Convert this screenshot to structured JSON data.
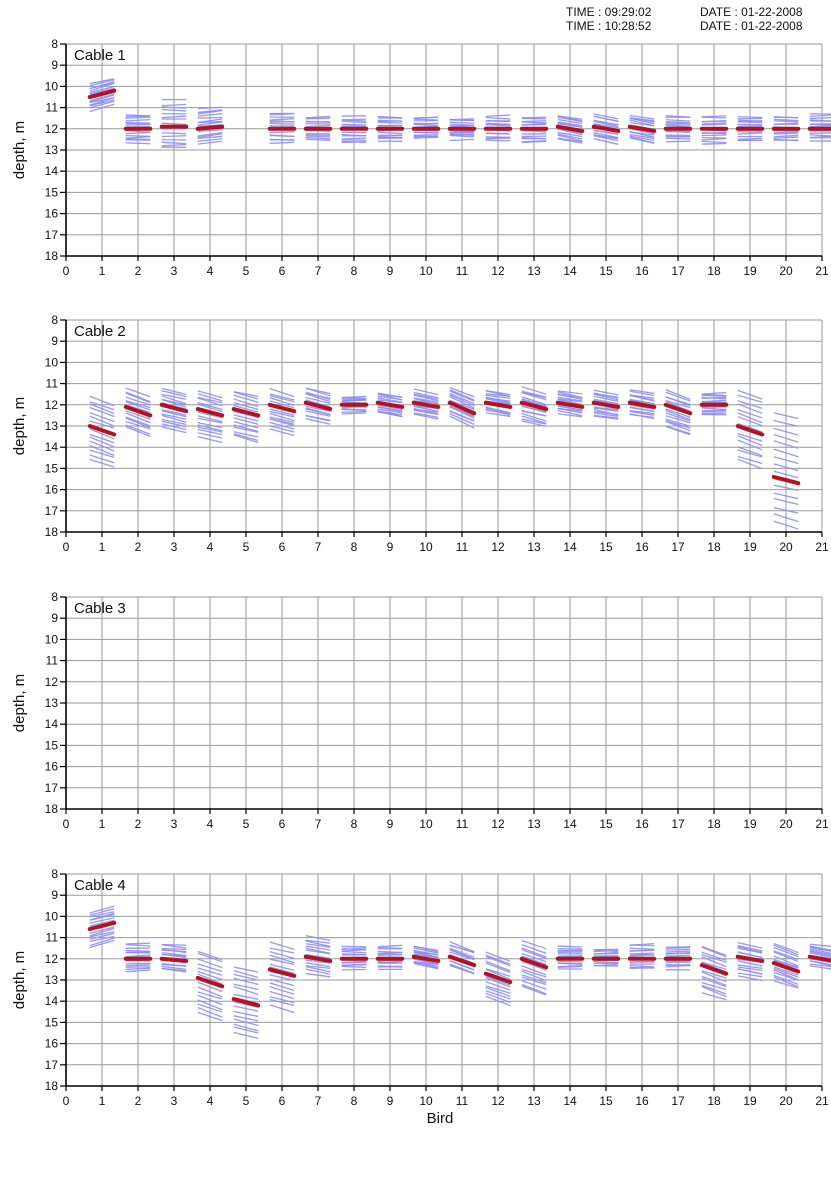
{
  "header": {
    "lines": [
      {
        "time": "TIME : 09:29:02",
        "date": "DATE : 01-22-2008"
      },
      {
        "time": "TIME : 10:28:52",
        "date": "DATE : 01-22-2008"
      }
    ]
  },
  "colors": {
    "mean_line": "#b5121b",
    "spread_lines": "#8d8df0",
    "grid": "#9a9a9a"
  },
  "chart_data": [
    {
      "type": "line",
      "title": "Cable 1",
      "xlabel": "",
      "ylabel": "depth, m",
      "xlim": [
        0,
        21
      ],
      "ylim": [
        8,
        18
      ],
      "y_inverted": true,
      "grid": true,
      "xticks": [
        0,
        1,
        2,
        3,
        4,
        5,
        6,
        7,
        8,
        9,
        10,
        11,
        12,
        13,
        14,
        15,
        16,
        17,
        18,
        19,
        20,
        21
      ],
      "yticks": [
        8,
        9,
        10,
        11,
        12,
        13,
        14,
        15,
        16,
        17,
        18
      ],
      "birds": [
        {
          "bird": 1,
          "depth_start": 10.5,
          "depth_end": 10.2,
          "spread_min": 9.7,
          "spread_max": 11.0
        },
        {
          "bird": 2,
          "depth_start": 12.0,
          "depth_end": 12.0,
          "spread_min": 11.3,
          "spread_max": 12.7
        },
        {
          "bird": 3,
          "depth_start": 11.9,
          "depth_end": 11.9,
          "spread_min": 10.6,
          "spread_max": 13.0
        },
        {
          "bird": 4,
          "depth_start": 12.0,
          "depth_end": 11.9,
          "spread_min": 11.0,
          "spread_max": 12.7
        },
        {
          "bird": 6,
          "depth_start": 12.0,
          "depth_end": 12.0,
          "spread_min": 11.2,
          "spread_max": 12.7
        },
        {
          "bird": 7,
          "depth_start": 12.0,
          "depth_end": 12.0,
          "spread_min": 11.4,
          "spread_max": 12.5
        },
        {
          "bird": 8,
          "depth_start": 12.0,
          "depth_end": 12.0,
          "spread_min": 11.4,
          "spread_max": 12.7
        },
        {
          "bird": 9,
          "depth_start": 12.0,
          "depth_end": 12.0,
          "spread_min": 11.4,
          "spread_max": 12.6
        },
        {
          "bird": 10,
          "depth_start": 12.0,
          "depth_end": 12.0,
          "spread_min": 11.4,
          "spread_max": 12.5
        },
        {
          "bird": 11,
          "depth_start": 12.0,
          "depth_end": 12.0,
          "spread_min": 11.5,
          "spread_max": 12.5
        },
        {
          "bird": 12,
          "depth_start": 12.0,
          "depth_end": 12.0,
          "spread_min": 11.4,
          "spread_max": 12.6
        },
        {
          "bird": 13,
          "depth_start": 12.0,
          "depth_end": 12.0,
          "spread_min": 11.4,
          "spread_max": 12.7
        },
        {
          "bird": 14,
          "depth_start": 11.9,
          "depth_end": 12.1,
          "spread_min": 11.4,
          "spread_max": 12.6
        },
        {
          "bird": 15,
          "depth_start": 11.9,
          "depth_end": 12.1,
          "spread_min": 11.4,
          "spread_max": 12.6
        },
        {
          "bird": 16,
          "depth_start": 11.9,
          "depth_end": 12.1,
          "spread_min": 11.4,
          "spread_max": 12.6
        },
        {
          "bird": 17,
          "depth_start": 12.0,
          "depth_end": 12.0,
          "spread_min": 11.4,
          "spread_max": 12.6
        },
        {
          "bird": 18,
          "depth_start": 12.0,
          "depth_end": 12.0,
          "spread_min": 11.4,
          "spread_max": 12.7
        },
        {
          "bird": 19,
          "depth_start": 12.0,
          "depth_end": 12.0,
          "spread_min": 11.4,
          "spread_max": 12.6
        },
        {
          "bird": 20,
          "depth_start": 12.0,
          "depth_end": 12.0,
          "spread_min": 11.4,
          "spread_max": 12.6
        },
        {
          "bird": 21,
          "depth_start": 12.0,
          "depth_end": 12.0,
          "spread_min": 11.3,
          "spread_max": 12.6
        }
      ]
    },
    {
      "type": "line",
      "title": "Cable 2",
      "xlabel": "",
      "ylabel": "depth, m",
      "xlim": [
        0,
        21
      ],
      "ylim": [
        8,
        18
      ],
      "y_inverted": true,
      "grid": true,
      "xticks": [
        0,
        1,
        2,
        3,
        4,
        5,
        6,
        7,
        8,
        9,
        10,
        11,
        12,
        13,
        14,
        15,
        16,
        17,
        18,
        19,
        20,
        21
      ],
      "yticks": [
        8,
        9,
        10,
        11,
        12,
        13,
        14,
        15,
        16,
        17,
        18
      ],
      "birds": [
        {
          "bird": 1,
          "depth_start": 13.0,
          "depth_end": 13.4,
          "spread_min": 11.7,
          "spread_max": 14.8
        },
        {
          "bird": 2,
          "depth_start": 12.1,
          "depth_end": 12.5,
          "spread_min": 11.4,
          "spread_max": 13.3
        },
        {
          "bird": 3,
          "depth_start": 12.0,
          "depth_end": 12.3,
          "spread_min": 11.3,
          "spread_max": 13.2
        },
        {
          "bird": 4,
          "depth_start": 12.2,
          "depth_end": 12.5,
          "spread_min": 11.4,
          "spread_max": 13.7
        },
        {
          "bird": 5,
          "depth_start": 12.2,
          "depth_end": 12.5,
          "spread_min": 11.4,
          "spread_max": 13.7
        },
        {
          "bird": 6,
          "depth_start": 12.0,
          "depth_end": 12.3,
          "spread_min": 11.4,
          "spread_max": 13.3
        },
        {
          "bird": 7,
          "depth_start": 11.9,
          "depth_end": 12.2,
          "spread_min": 11.3,
          "spread_max": 12.8
        },
        {
          "bird": 8,
          "depth_start": 12.0,
          "depth_end": 12.0,
          "spread_min": 11.6,
          "spread_max": 12.4
        },
        {
          "bird": 9,
          "depth_start": 11.9,
          "depth_end": 12.1,
          "spread_min": 11.5,
          "spread_max": 12.5
        },
        {
          "bird": 10,
          "depth_start": 11.9,
          "depth_end": 12.1,
          "spread_min": 11.4,
          "spread_max": 12.6
        },
        {
          "bird": 11,
          "depth_start": 11.9,
          "depth_end": 12.4,
          "spread_min": 11.4,
          "spread_max": 12.8
        },
        {
          "bird": 12,
          "depth_start": 11.9,
          "depth_end": 12.1,
          "spread_min": 11.4,
          "spread_max": 12.5
        },
        {
          "bird": 13,
          "depth_start": 11.9,
          "depth_end": 12.2,
          "spread_min": 11.3,
          "spread_max": 12.9
        },
        {
          "bird": 14,
          "depth_start": 11.9,
          "depth_end": 12.1,
          "spread_min": 11.4,
          "spread_max": 12.5
        },
        {
          "bird": 15,
          "depth_start": 11.9,
          "depth_end": 12.1,
          "spread_min": 11.4,
          "spread_max": 12.7
        },
        {
          "bird": 16,
          "depth_start": 11.9,
          "depth_end": 12.1,
          "spread_min": 11.4,
          "spread_max": 12.6
        },
        {
          "bird": 17,
          "depth_start": 12.0,
          "depth_end": 12.4,
          "spread_min": 11.5,
          "spread_max": 13.3
        },
        {
          "bird": 18,
          "depth_start": 12.0,
          "depth_end": 12.0,
          "spread_min": 11.4,
          "spread_max": 12.5
        },
        {
          "bird": 19,
          "depth_start": 13.0,
          "depth_end": 13.4,
          "spread_min": 11.4,
          "spread_max": 14.9
        },
        {
          "bird": 20,
          "depth_start": 15.4,
          "depth_end": 15.7,
          "spread_min": 12.4,
          "spread_max": 17.8
        }
      ]
    },
    {
      "type": "line",
      "title": "Cable 3",
      "xlabel": "",
      "ylabel": "depth, m",
      "xlim": [
        0,
        21
      ],
      "ylim": [
        8,
        18
      ],
      "y_inverted": true,
      "grid": true,
      "xticks": [
        0,
        1,
        2,
        3,
        4,
        5,
        6,
        7,
        8,
        9,
        10,
        11,
        12,
        13,
        14,
        15,
        16,
        17,
        18,
        19,
        20,
        21
      ],
      "yticks": [
        8,
        9,
        10,
        11,
        12,
        13,
        14,
        15,
        16,
        17,
        18
      ],
      "birds": []
    },
    {
      "type": "line",
      "title": "Cable 4",
      "xlabel": "Bird",
      "ylabel": "depth, m",
      "xlim": [
        0,
        21
      ],
      "ylim": [
        8,
        18
      ],
      "y_inverted": true,
      "grid": true,
      "xticks": [
        0,
        1,
        2,
        3,
        4,
        5,
        6,
        7,
        8,
        9,
        10,
        11,
        12,
        13,
        14,
        15,
        16,
        17,
        18,
        19,
        20,
        21
      ],
      "yticks": [
        8,
        9,
        10,
        11,
        12,
        13,
        14,
        15,
        16,
        17,
        18
      ],
      "birds": [
        {
          "bird": 1,
          "depth_start": 10.6,
          "depth_end": 10.3,
          "spread_min": 9.6,
          "spread_max": 11.3
        },
        {
          "bird": 2,
          "depth_start": 12.0,
          "depth_end": 12.0,
          "spread_min": 11.3,
          "spread_max": 12.6
        },
        {
          "bird": 3,
          "depth_start": 12.0,
          "depth_end": 12.1,
          "spread_min": 11.3,
          "spread_max": 12.6
        },
        {
          "bird": 4,
          "depth_start": 12.9,
          "depth_end": 13.3,
          "spread_min": 11.7,
          "spread_max": 14.8
        },
        {
          "bird": 5,
          "depth_start": 13.9,
          "depth_end": 14.2,
          "spread_min": 12.4,
          "spread_max": 15.7
        },
        {
          "bird": 6,
          "depth_start": 12.5,
          "depth_end": 12.8,
          "spread_min": 11.3,
          "spread_max": 14.4
        },
        {
          "bird": 7,
          "depth_start": 11.9,
          "depth_end": 12.1,
          "spread_min": 11.0,
          "spread_max": 12.8
        },
        {
          "bird": 8,
          "depth_start": 12.0,
          "depth_end": 12.0,
          "spread_min": 11.4,
          "spread_max": 12.5
        },
        {
          "bird": 9,
          "depth_start": 12.0,
          "depth_end": 12.0,
          "spread_min": 11.4,
          "spread_max": 12.5
        },
        {
          "bird": 10,
          "depth_start": 11.9,
          "depth_end": 12.1,
          "spread_min": 11.5,
          "spread_max": 12.4
        },
        {
          "bird": 11,
          "depth_start": 11.9,
          "depth_end": 12.3,
          "spread_min": 11.4,
          "spread_max": 12.6
        },
        {
          "bird": 12,
          "depth_start": 12.7,
          "depth_end": 13.1,
          "spread_min": 11.8,
          "spread_max": 14.1
        },
        {
          "bird": 13,
          "depth_start": 12.0,
          "depth_end": 12.4,
          "spread_min": 11.3,
          "spread_max": 13.6
        },
        {
          "bird": 14,
          "depth_start": 12.0,
          "depth_end": 12.0,
          "spread_min": 11.4,
          "spread_max": 12.5
        },
        {
          "bird": 15,
          "depth_start": 12.0,
          "depth_end": 12.0,
          "spread_min": 11.5,
          "spread_max": 12.4
        },
        {
          "bird": 16,
          "depth_start": 12.0,
          "depth_end": 12.0,
          "spread_min": 11.3,
          "spread_max": 12.5
        },
        {
          "bird": 17,
          "depth_start": 12.0,
          "depth_end": 12.0,
          "spread_min": 11.4,
          "spread_max": 12.5
        },
        {
          "bird": 18,
          "depth_start": 12.3,
          "depth_end": 12.7,
          "spread_min": 11.5,
          "spread_max": 13.8
        },
        {
          "bird": 19,
          "depth_start": 11.9,
          "depth_end": 12.1,
          "spread_min": 11.3,
          "spread_max": 12.9
        },
        {
          "bird": 20,
          "depth_start": 12.2,
          "depth_end": 12.6,
          "spread_min": 11.4,
          "spread_max": 13.3
        },
        {
          "bird": 21,
          "depth_start": 11.9,
          "depth_end": 12.1,
          "spread_min": 11.4,
          "spread_max": 12.4
        }
      ]
    }
  ]
}
